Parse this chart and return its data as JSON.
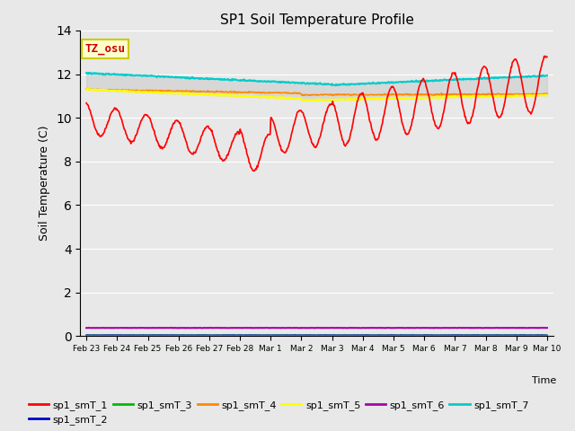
{
  "title": "SP1 Soil Temperature Profile",
  "xlabel": "Time",
  "ylabel": "Soil Temperature (C)",
  "ylim": [
    0,
    14
  ],
  "yticks": [
    0,
    2,
    4,
    6,
    8,
    10,
    12,
    14
  ],
  "fig_bg_color": "#e8e8e8",
  "plot_bg_color": "#e8e8e8",
  "annotation_text": "TZ_osu",
  "annotation_color": "#cc0000",
  "annotation_bg": "#ffffcc",
  "annotation_border": "#cccc00",
  "series": {
    "sp1_smT_1": {
      "color": "#ff0000",
      "linewidth": 1.2
    },
    "sp1_smT_2": {
      "color": "#0000cc",
      "linewidth": 1.2
    },
    "sp1_smT_3": {
      "color": "#00bb00",
      "linewidth": 1.2
    },
    "sp1_smT_4": {
      "color": "#ff8800",
      "linewidth": 1.2
    },
    "sp1_smT_5": {
      "color": "#ffff00",
      "linewidth": 1.5
    },
    "sp1_smT_6": {
      "color": "#aa00aa",
      "linewidth": 1.5
    },
    "sp1_smT_7": {
      "color": "#00cccc",
      "linewidth": 1.5
    }
  },
  "tick_positions": [
    0,
    1,
    2,
    3,
    4,
    5,
    6,
    7,
    8,
    9,
    10,
    11,
    12,
    13,
    14,
    15
  ],
  "tick_labels": [
    "Feb 23",
    "Feb 24",
    "Feb 25",
    "Feb 26",
    "Feb 27",
    "Feb 28",
    "Mar 1",
    "Mar 2",
    "Mar 3",
    "Mar 4",
    "Mar 5",
    "Mar 6",
    "Mar 7",
    "Mar 8",
    "Mar 9",
    "Mar 10"
  ],
  "fill_color": "#c8c8c8",
  "fill_alpha": 0.5
}
